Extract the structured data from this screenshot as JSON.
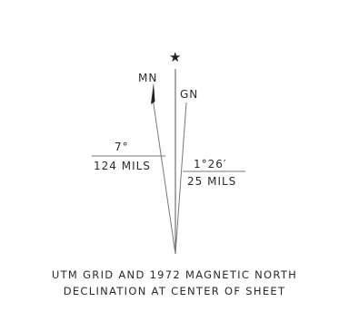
{
  "diagram": {
    "star_label": "★",
    "mn_label": "MN",
    "gn_label": "GN",
    "mn_degrees": "7°",
    "mn_mils": "124 MILS",
    "gn_degrees": "1°26′",
    "gn_mils": "25 MILS",
    "line_color": "#555555",
    "mark_color": "#222222"
  },
  "caption": {
    "line1": "UTM GRID AND 1972 MAGNETIC NORTH",
    "line2": "DECLINATION AT CENTER OF SHEET"
  }
}
